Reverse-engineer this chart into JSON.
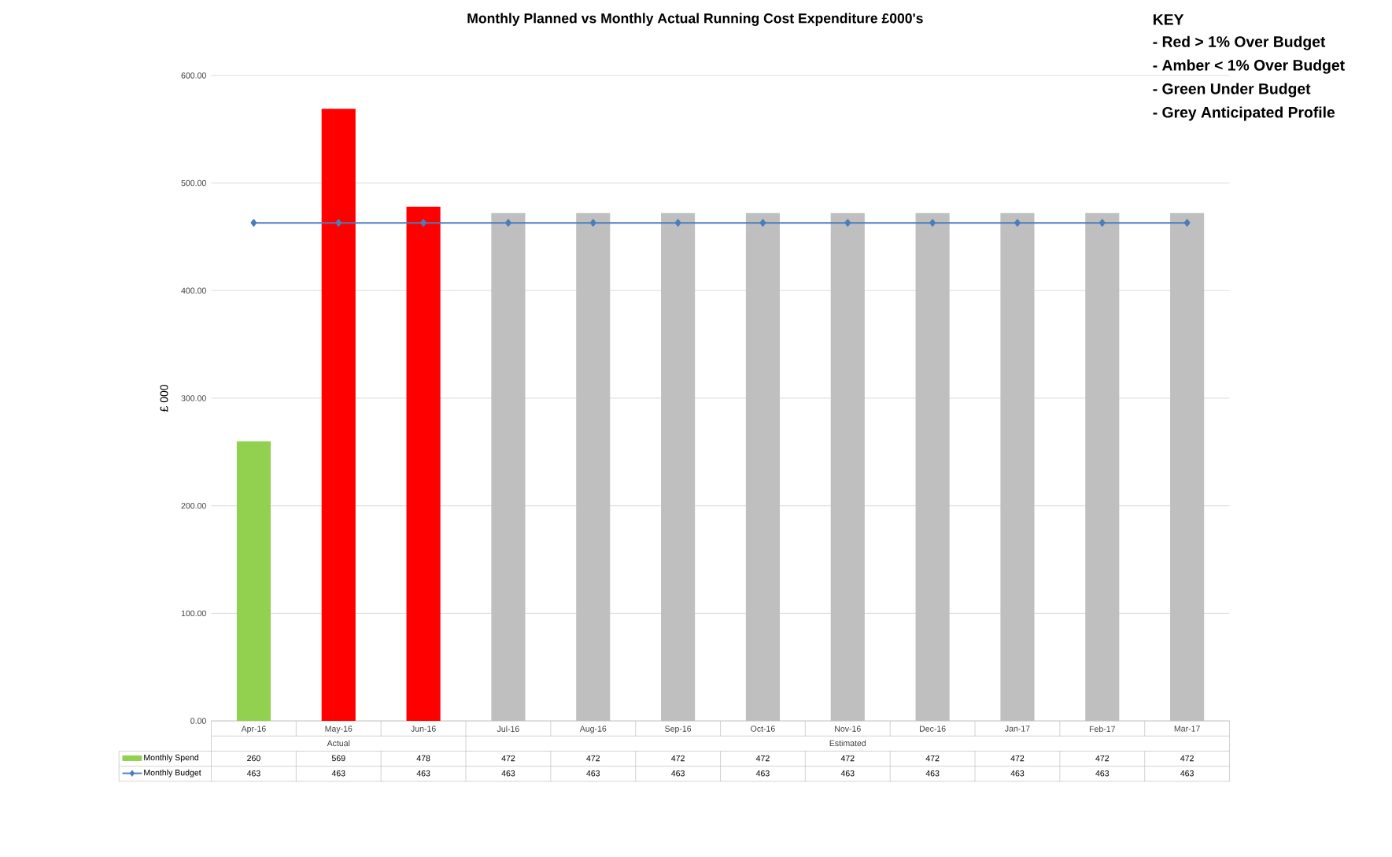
{
  "chart_data": {
    "type": "bar",
    "title": "Monthly Planned vs Monthly Actual Running Cost Expenditure £000's",
    "ylabel": "£ 000",
    "categories": [
      "Apr-16",
      "May-16",
      "Jun-16",
      "Jul-16",
      "Aug-16",
      "Sep-16",
      "Oct-16",
      "Nov-16",
      "Dec-16",
      "Jan-17",
      "Feb-17",
      "Mar-17"
    ],
    "series": [
      {
        "name": "Monthly Spend",
        "colors": [
          "#92d050",
          "#ff0000",
          "#ff0000",
          "#bfbfbf",
          "#bfbfbf",
          "#bfbfbf",
          "#bfbfbf",
          "#bfbfbf",
          "#bfbfbf",
          "#bfbfbf",
          "#bfbfbf",
          "#bfbfbf"
        ],
        "values": [
          260,
          569,
          478,
          472,
          472,
          472,
          472,
          472,
          472,
          472,
          472,
          472
        ]
      },
      {
        "name": "Monthly Budget",
        "type": "line",
        "color": "#4a7ebb",
        "values": [
          463,
          463,
          463,
          463,
          463,
          463,
          463,
          463,
          463,
          463,
          463,
          463
        ]
      }
    ],
    "marker": "diamond",
    "line_style": "solid",
    "ylim": [
      0,
      600
    ],
    "yticks": [
      {
        "value": 0,
        "label": "0.00"
      },
      {
        "value": 100,
        "label": "100.00"
      },
      {
        "value": 200,
        "label": "200.00"
      },
      {
        "value": 300,
        "label": "300.00"
      },
      {
        "value": 400,
        "label": "400.00"
      },
      {
        "value": 500,
        "label": "500.00"
      },
      {
        "value": 600,
        "label": "600.00"
      }
    ],
    "grid": "y",
    "data_labels": true,
    "legend": "bottom left",
    "annotations": [
      "Actual",
      "Estimated",
      "KEY",
      "- Red > 1% Over Budget",
      "- Amber < 1% Over Budget",
      "- Green Under Budget",
      "- Grey Anticipated Profile"
    ]
  }
}
